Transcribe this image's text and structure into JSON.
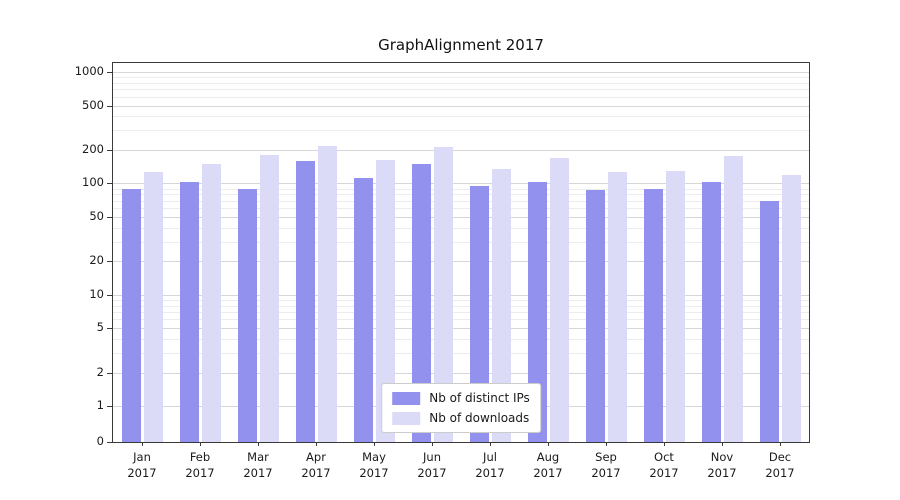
{
  "chart_data": {
    "type": "bar",
    "title": "GraphAlignment 2017",
    "yscale": "symlog",
    "grid": true,
    "legend_position": "lower center",
    "ylim": [
      0,
      1150
    ],
    "yticks": [
      0,
      1,
      2,
      5,
      10,
      20,
      50,
      100,
      200,
      500,
      1000
    ],
    "categories": [
      "Jan 2017",
      "Feb 2017",
      "Mar 2017",
      "Apr 2017",
      "May 2017",
      "Jun 2017",
      "Jul 2017",
      "Aug 2017",
      "Sep 2017",
      "Oct 2017",
      "Nov 2017",
      "Dec 2017"
    ],
    "series": [
      {
        "name": "Nb of distinct IPs",
        "color": "#9292ee",
        "values": [
          90,
          102,
          90,
          160,
          112,
          150,
          95,
          103,
          87,
          89,
          103,
          70
        ]
      },
      {
        "name": "Nb of downloads",
        "color": "#dbdbf8",
        "values": [
          127,
          150,
          182,
          215,
          163,
          212,
          135,
          170,
          126,
          130,
          178,
          120
        ]
      }
    ],
    "colors": {
      "major_grid": "#d7d7d7",
      "minor_grid": "#ececec",
      "spine": "#3a3a3a"
    }
  }
}
